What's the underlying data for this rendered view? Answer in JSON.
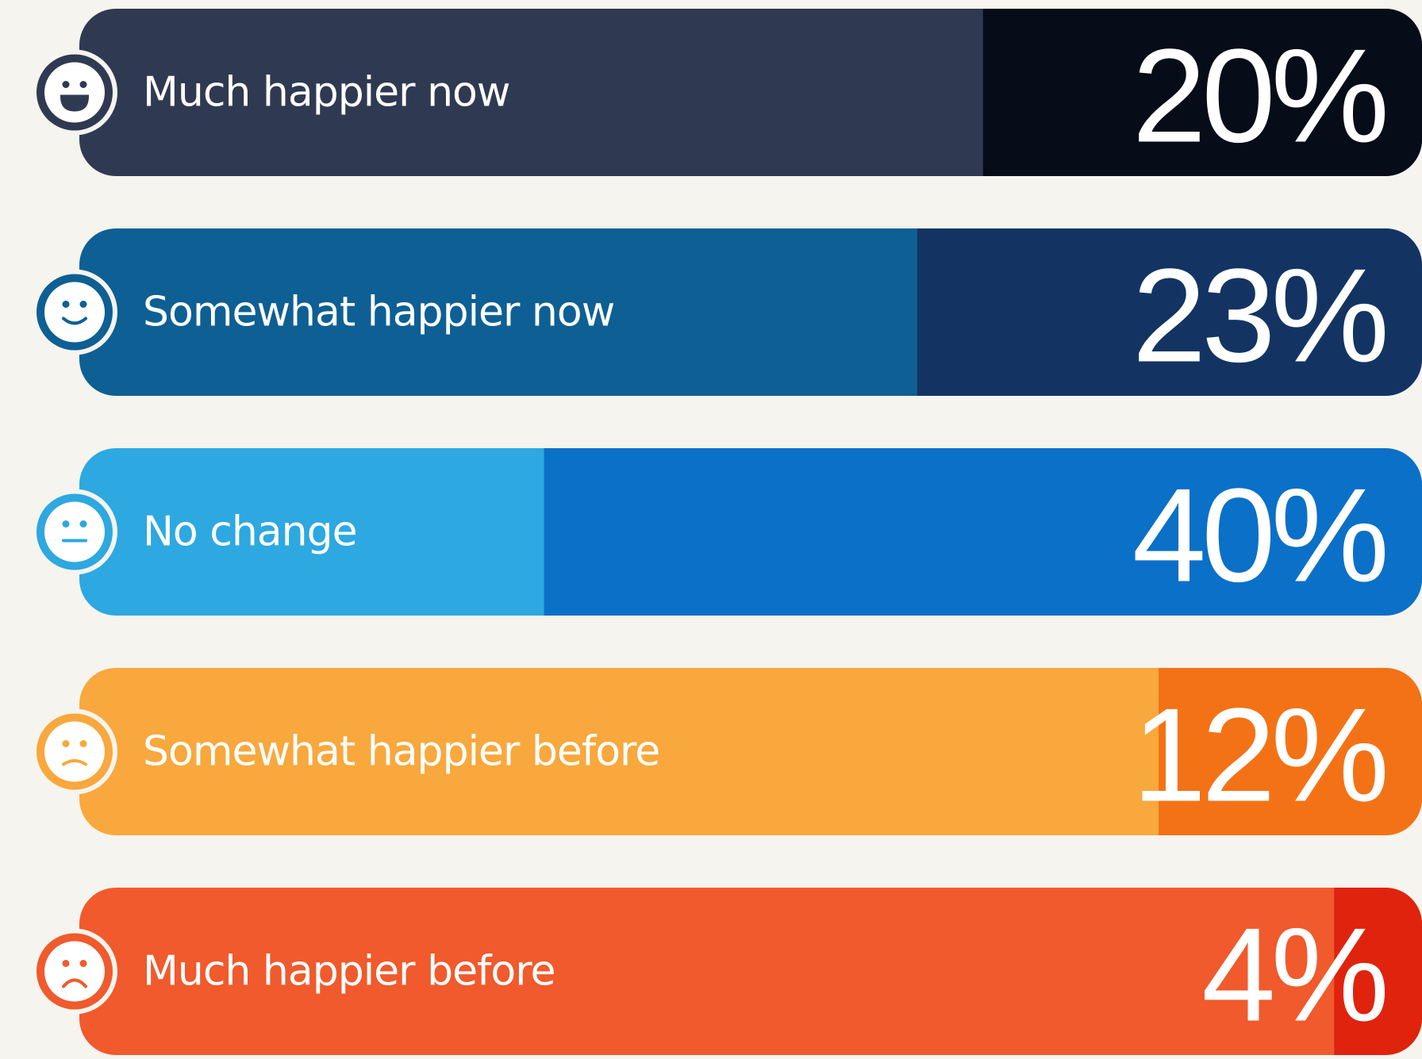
{
  "chart_data": {
    "type": "bar",
    "categories": [
      "Much happier now",
      "Somewhat happier now",
      "No change",
      "Somewhat happier before",
      "Much happier before"
    ],
    "values": [
      20,
      23,
      40,
      12,
      4
    ],
    "value_labels": [
      "20%",
      "23%",
      "40%",
      "12%",
      "4%"
    ],
    "colors": [
      "#2f3a52",
      "#0e5f94",
      "#2da8e0",
      "#f8a83c",
      "#f05a2c"
    ],
    "highlight_colors": [
      "#060c18",
      "#133463",
      "#0b70c7",
      "#f47216",
      "#e0230d"
    ]
  }
}
